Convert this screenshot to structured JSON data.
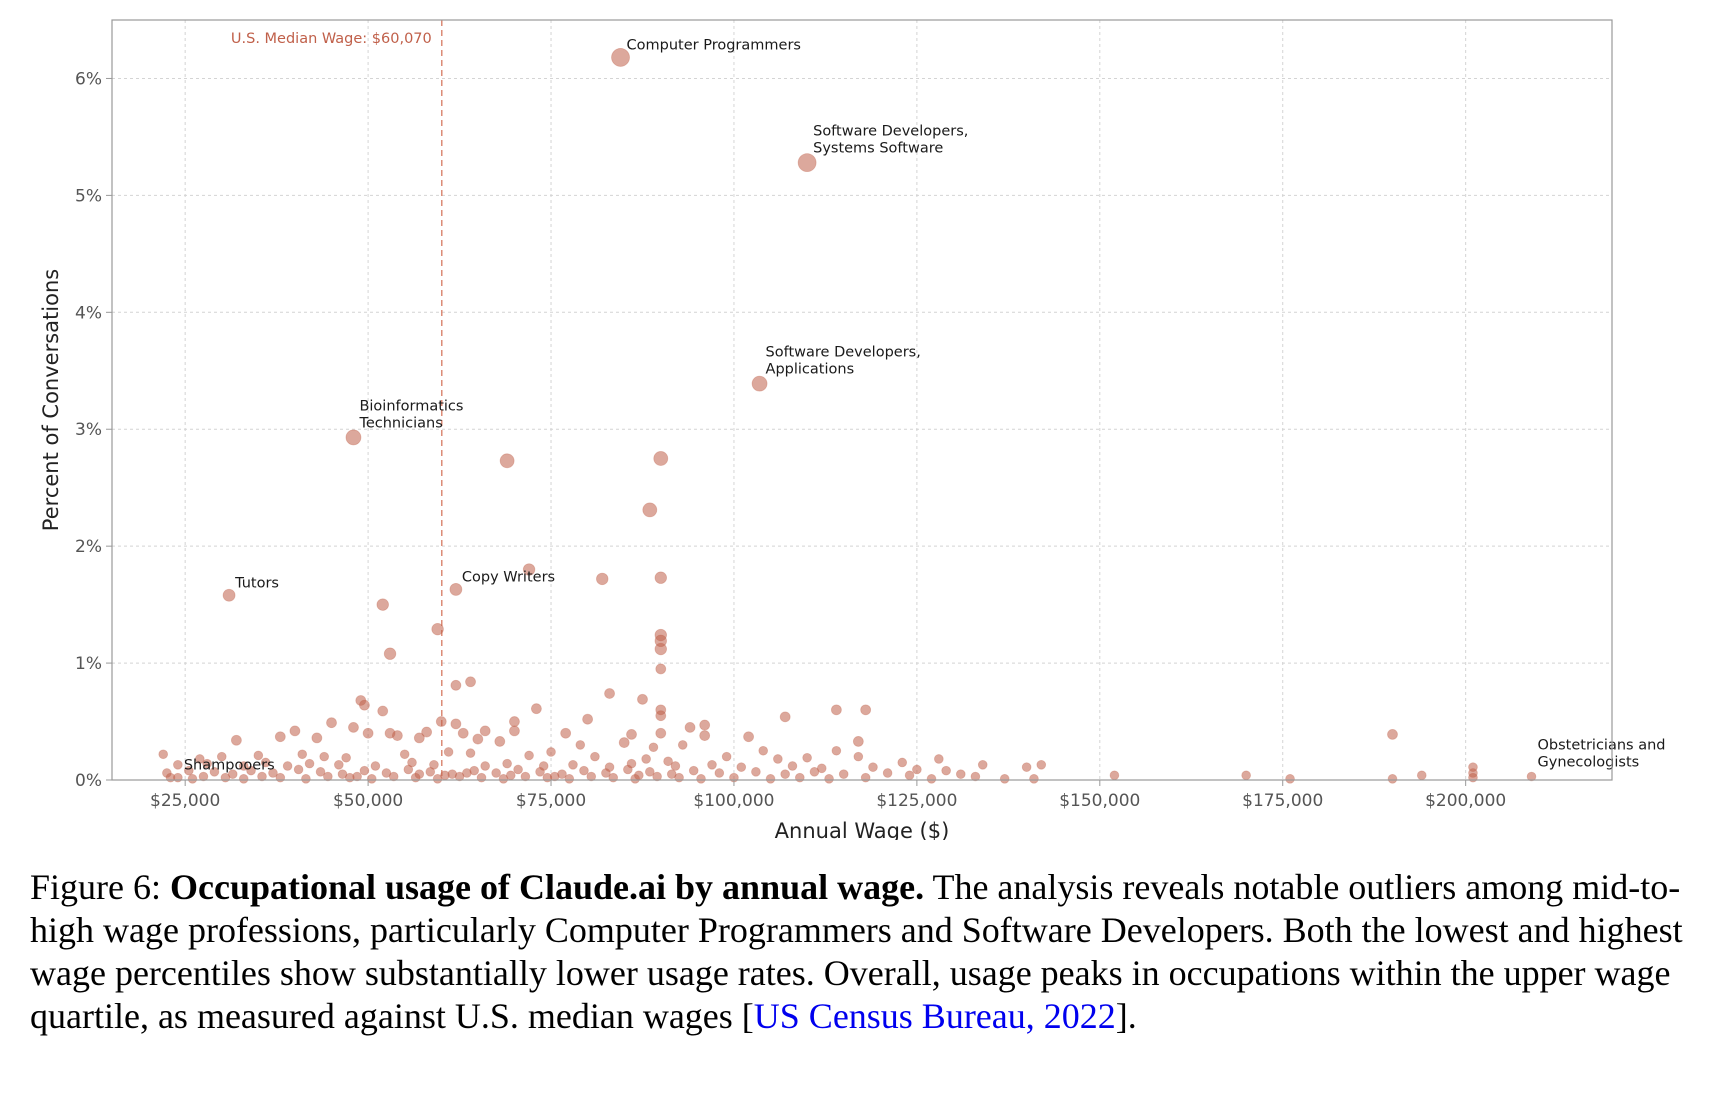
{
  "chart_data": {
    "type": "scatter",
    "xlabel": "Annual Wage ($)",
    "ylabel": "Percent of Conversations",
    "xlim": [
      15000,
      220000
    ],
    "ylim": [
      0,
      6.5
    ],
    "x_ticks": [
      25000,
      50000,
      75000,
      100000,
      125000,
      150000,
      175000,
      200000
    ],
    "x_tick_labels": [
      "$25,000",
      "$50,000",
      "$75,000",
      "$100,000",
      "$125,000",
      "$150,000",
      "$175,000",
      "$200,000"
    ],
    "y_ticks": [
      0,
      1,
      2,
      3,
      4,
      5,
      6
    ],
    "y_tick_labels": [
      "0%",
      "1%",
      "2%",
      "3%",
      "4%",
      "5%",
      "6%"
    ],
    "grid": true,
    "point_color": "#c0604a",
    "median_line": {
      "x": 60070,
      "label": "U.S. Median Wage: $60,070",
      "color": "#d9836c"
    },
    "labeled_points": [
      {
        "label": [
          "Computer Programmers"
        ],
        "x": 84500,
        "y": 6.18
      },
      {
        "label": [
          "Software Developers,",
          "Systems Software"
        ],
        "x": 110000,
        "y": 5.28
      },
      {
        "label": [
          "Software Developers,",
          "Applications"
        ],
        "x": 103500,
        "y": 3.39
      },
      {
        "label": [
          "Bioinformatics",
          "Technicians"
        ],
        "x": 48000,
        "y": 2.93
      },
      {
        "label": [
          "Copy Writers"
        ],
        "x": 62000,
        "y": 1.63
      },
      {
        "label": [
          "Tutors"
        ],
        "x": 31000,
        "y": 1.58
      },
      {
        "label": [
          "Shampooers"
        ],
        "x": 24000,
        "y": 0.02
      },
      {
        "label": [
          "Obstetricians and",
          "Gynecologists"
        ],
        "x": 209000,
        "y": 0.03
      }
    ],
    "points": [
      [
        69000,
        2.73
      ],
      [
        90000,
        2.75
      ],
      [
        88500,
        2.31
      ],
      [
        72000,
        1.8
      ],
      [
        82000,
        1.72
      ],
      [
        90000,
        1.73
      ],
      [
        52000,
        1.5
      ],
      [
        59500,
        1.29
      ],
      [
        53000,
        1.08
      ],
      [
        90000,
        1.24
      ],
      [
        90000,
        1.19
      ],
      [
        90000,
        1.12
      ],
      [
        90000,
        0.95
      ],
      [
        64000,
        0.84
      ],
      [
        62000,
        0.81
      ],
      [
        83000,
        0.74
      ],
      [
        87500,
        0.69
      ],
      [
        49000,
        0.68
      ],
      [
        49500,
        0.64
      ],
      [
        114000,
        0.6
      ],
      [
        118000,
        0.6
      ],
      [
        90000,
        0.6
      ],
      [
        73000,
        0.61
      ],
      [
        52000,
        0.59
      ],
      [
        90000,
        0.55
      ],
      [
        107000,
        0.54
      ],
      [
        80000,
        0.52
      ],
      [
        70000,
        0.5
      ],
      [
        60000,
        0.5
      ],
      [
        62000,
        0.48
      ],
      [
        45000,
        0.49
      ],
      [
        48000,
        0.45
      ],
      [
        96000,
        0.47
      ],
      [
        94000,
        0.45
      ],
      [
        40000,
        0.42
      ],
      [
        50000,
        0.4
      ],
      [
        53000,
        0.4
      ],
      [
        58000,
        0.41
      ],
      [
        63000,
        0.4
      ],
      [
        66000,
        0.42
      ],
      [
        70000,
        0.42
      ],
      [
        77000,
        0.4
      ],
      [
        86000,
        0.39
      ],
      [
        90000,
        0.4
      ],
      [
        96000,
        0.38
      ],
      [
        102000,
        0.37
      ],
      [
        117000,
        0.33
      ],
      [
        190000,
        0.39
      ],
      [
        32000,
        0.34
      ],
      [
        38000,
        0.37
      ],
      [
        43000,
        0.36
      ],
      [
        54000,
        0.38
      ],
      [
        57000,
        0.36
      ],
      [
        65000,
        0.35
      ],
      [
        68000,
        0.33
      ],
      [
        79000,
        0.3
      ],
      [
        85000,
        0.32
      ],
      [
        89000,
        0.28
      ],
      [
        93000,
        0.3
      ],
      [
        104000,
        0.25
      ],
      [
        114000,
        0.25
      ],
      [
        22000,
        0.22
      ],
      [
        27000,
        0.18
      ],
      [
        30000,
        0.2
      ],
      [
        35000,
        0.21
      ],
      [
        41000,
        0.22
      ],
      [
        44000,
        0.2
      ],
      [
        47000,
        0.19
      ],
      [
        55000,
        0.22
      ],
      [
        61000,
        0.24
      ],
      [
        64000,
        0.23
      ],
      [
        72000,
        0.21
      ],
      [
        75000,
        0.24
      ],
      [
        81000,
        0.2
      ],
      [
        88000,
        0.18
      ],
      [
        91000,
        0.16
      ],
      [
        99000,
        0.2
      ],
      [
        106000,
        0.18
      ],
      [
        110000,
        0.19
      ],
      [
        117000,
        0.2
      ],
      [
        123000,
        0.15
      ],
      [
        128000,
        0.18
      ],
      [
        134000,
        0.13
      ],
      [
        142000,
        0.13
      ],
      [
        140000,
        0.11
      ],
      [
        201000,
        0.11
      ],
      [
        24000,
        0.13
      ],
      [
        28000,
        0.14
      ],
      [
        33000,
        0.12
      ],
      [
        36000,
        0.15
      ],
      [
        39000,
        0.12
      ],
      [
        42000,
        0.14
      ],
      [
        46000,
        0.13
      ],
      [
        51000,
        0.12
      ],
      [
        56000,
        0.15
      ],
      [
        59000,
        0.13
      ],
      [
        66000,
        0.12
      ],
      [
        69000,
        0.14
      ],
      [
        74000,
        0.12
      ],
      [
        78000,
        0.13
      ],
      [
        83000,
        0.11
      ],
      [
        86000,
        0.14
      ],
      [
        92000,
        0.12
      ],
      [
        97000,
        0.13
      ],
      [
        101000,
        0.11
      ],
      [
        108000,
        0.12
      ],
      [
        112000,
        0.1
      ],
      [
        119000,
        0.11
      ],
      [
        125000,
        0.09
      ],
      [
        129000,
        0.08
      ],
      [
        201000,
        0.06
      ],
      [
        22500,
        0.06
      ],
      [
        25500,
        0.08
      ],
      [
        29000,
        0.07
      ],
      [
        31500,
        0.05
      ],
      [
        34000,
        0.08
      ],
      [
        37000,
        0.06
      ],
      [
        40500,
        0.09
      ],
      [
        43500,
        0.07
      ],
      [
        46500,
        0.05
      ],
      [
        49500,
        0.08
      ],
      [
        52500,
        0.06
      ],
      [
        55500,
        0.09
      ],
      [
        58500,
        0.07
      ],
      [
        61500,
        0.05
      ],
      [
        64500,
        0.08
      ],
      [
        67500,
        0.06
      ],
      [
        70500,
        0.09
      ],
      [
        73500,
        0.07
      ],
      [
        76500,
        0.05
      ],
      [
        79500,
        0.08
      ],
      [
        82500,
        0.06
      ],
      [
        85500,
        0.09
      ],
      [
        88500,
        0.07
      ],
      [
        91500,
        0.05
      ],
      [
        94500,
        0.08
      ],
      [
        98000,
        0.06
      ],
      [
        103000,
        0.07
      ],
      [
        107000,
        0.05
      ],
      [
        111000,
        0.07
      ],
      [
        115000,
        0.05
      ],
      [
        121000,
        0.06
      ],
      [
        124000,
        0.04
      ],
      [
        131000,
        0.05
      ],
      [
        133000,
        0.03
      ],
      [
        152000,
        0.04
      ],
      [
        170000,
        0.04
      ],
      [
        194000,
        0.04
      ],
      [
        201000,
        0.02
      ],
      [
        23000,
        0.02
      ],
      [
        26000,
        0.01
      ],
      [
        27500,
        0.03
      ],
      [
        30500,
        0.02
      ],
      [
        33000,
        0.01
      ],
      [
        35500,
        0.03
      ],
      [
        38000,
        0.02
      ],
      [
        41500,
        0.01
      ],
      [
        44500,
        0.03
      ],
      [
        47500,
        0.02
      ],
      [
        50500,
        0.01
      ],
      [
        53500,
        0.03
      ],
      [
        56500,
        0.02
      ],
      [
        59500,
        0.01
      ],
      [
        62500,
        0.03
      ],
      [
        65500,
        0.02
      ],
      [
        68500,
        0.01
      ],
      [
        71500,
        0.03
      ],
      [
        74500,
        0.02
      ],
      [
        77500,
        0.01
      ],
      [
        80500,
        0.03
      ],
      [
        83500,
        0.02
      ],
      [
        86500,
        0.01
      ],
      [
        89500,
        0.03
      ],
      [
        92500,
        0.02
      ],
      [
        95500,
        0.01
      ],
      [
        100000,
        0.02
      ],
      [
        105000,
        0.01
      ],
      [
        109000,
        0.02
      ],
      [
        113000,
        0.01
      ],
      [
        118000,
        0.02
      ],
      [
        127000,
        0.01
      ],
      [
        137000,
        0.01
      ],
      [
        141000,
        0.01
      ],
      [
        176000,
        0.01
      ],
      [
        190000,
        0.01
      ],
      [
        60500,
        0.04
      ],
      [
        48500,
        0.03
      ],
      [
        57000,
        0.05
      ],
      [
        63500,
        0.06
      ],
      [
        69500,
        0.04
      ],
      [
        75500,
        0.03
      ],
      [
        87000,
        0.04
      ]
    ]
  },
  "caption": {
    "prefix": "Figure 6: ",
    "bold": "Occupational usage of Claude.ai by annual wage.",
    "text": " The analysis reveals notable outliers among mid-to-high wage professions, particularly Computer Programmers and Software Developers. Both the lowest and highest wage percentiles show substantially lower usage rates. Overall, usage peaks in occupations within the upper wage quartile, as measured against U.S. median wages [",
    "cite": "US Census Bureau, 2022",
    "suffix": "]."
  }
}
